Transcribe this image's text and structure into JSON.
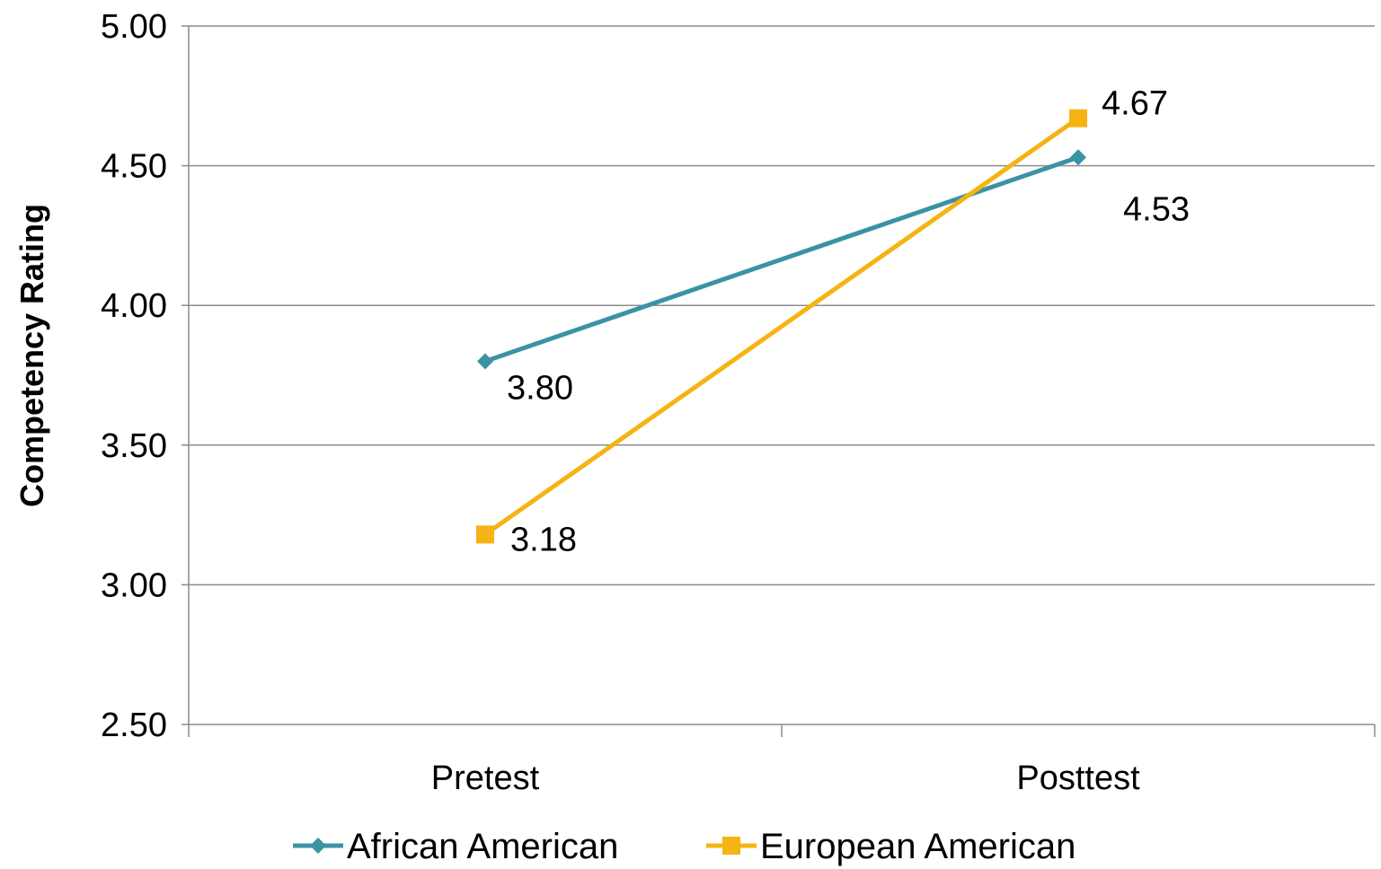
{
  "chart_data": {
    "type": "line",
    "title": "",
    "xlabel": "",
    "ylabel": "Competency Rating",
    "categories": [
      "Pretest",
      "Posttest"
    ],
    "ylim": [
      2.5,
      5.0
    ],
    "yticks": [
      "2.50",
      "3.00",
      "3.50",
      "4.00",
      "4.50",
      "5.00"
    ],
    "grid": true,
    "legend_position": "bottom",
    "series": [
      {
        "name": "African American",
        "values": [
          3.8,
          4.53
        ],
        "labels": [
          "3.80",
          "4.53"
        ],
        "color": "#3a93a5",
        "marker": "diamond"
      },
      {
        "name": "European American",
        "values": [
          3.18,
          4.67
        ],
        "labels": [
          "3.18",
          "4.67"
        ],
        "color": "#f5b414",
        "marker": "square"
      }
    ]
  }
}
